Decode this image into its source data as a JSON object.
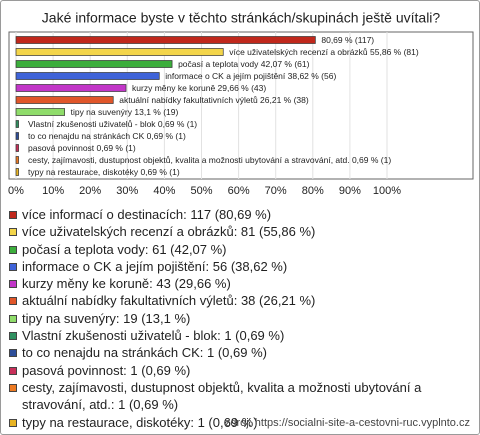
{
  "chart_data": {
    "type": "hbar",
    "title": "Jaké informace byste v těchto stránkách/skupinách ještě uvítali?",
    "categories": [
      "více informací o destinacích",
      "více uživatelských recenzí a obrázků",
      "počasí a teplota vody",
      "informace o CK a jejím pojištění",
      "kurzy měny ke koruně",
      "aktuální nabídky fakultativních výletů",
      "tipy na suvenýry",
      "Vlastní zkušenosti uživatelů - blok",
      "to co nenajdu na stránkách CK",
      "pasová povinnost",
      "cesty, zajímavosti, dustupnost objektů, kvalita a možnosti ubytování  a stravování,  atd.",
      "typy na restaurace, diskotéky"
    ],
    "values": [
      80.69,
      55.86,
      42.07,
      38.62,
      29.66,
      26.21,
      13.1,
      0.69,
      0.69,
      0.69,
      0.69,
      0.69
    ],
    "value_labels": [
      "80,69 % (117)",
      "více uživatelských recenzí a obrázků 55,86 % (81)",
      "počasí a teplota vody 42,07 % (61)",
      "informace o CK a jejím pojištění 38,62 % (56)",
      "kurzy měny ke koruně 29,66 % (43)",
      "aktuální nabídky fakultativních výletů 26,21 % (38)",
      "tipy na suvenýry 13,1 % (19)",
      "Vlastní zkušenosti uživatelů - blok 0,69 % (1)",
      "to co nenajdu na stránkách CK 0,69 % (1)",
      "pasová povinnost 0,69 % (1)",
      "cesty, zajímavosti, dustupnost objektů, kvalita a možnosti ubytování  a stravování,  atd. 0,69 % (1)",
      "typy na restaurace, diskotéky 0,69 % (1)"
    ],
    "legend_labels": [
      "více informací o destinacích: 117 (80,69 %)",
      "více uživatelských recenzí a obrázků: 81 (55,86 %)",
      "počasí a teplota vody: 61 (42,07 %)",
      "informace o CK a jejím pojištění: 56 (38,62 %)",
      "kurzy měny ke koruně: 43 (29,66 %)",
      "aktuální nabídky fakultativních výletů: 38 (26,21 %)",
      "tipy na suvenýry: 19 (13,1 %)",
      "Vlastní zkušenosti uživatelů - blok: 1 (0,69 %)",
      "to co nenajdu na stránkách CK: 1 (0,69 %)",
      "pasová povinnost: 1 (0,69 %)",
      "cesty, zajímavosti, dustupnost objektů, kvalita a možnosti ubytování  a stravování,  atd.: 1 (0,69 %)",
      "typy na restaurace, diskotéky: 1 (0,69 %)"
    ],
    "colors": [
      "#c0281c",
      "#f3d54a",
      "#3cae3c",
      "#3f63d8",
      "#c236c8",
      "#e0562a",
      "#8fdc6a",
      "#2f9060",
      "#2e4f9a",
      "#c8305a",
      "#ec7a22",
      "#e8b424"
    ],
    "xlim": [
      0,
      100
    ],
    "xticks": [
      {
        "value": 0,
        "label": "0%"
      },
      {
        "value": 10,
        "label": "10%"
      },
      {
        "value": 20,
        "label": "20%"
      },
      {
        "value": 30,
        "label": "30%"
      },
      {
        "value": 40,
        "label": "40%"
      },
      {
        "value": 50,
        "label": "50%"
      },
      {
        "value": 60,
        "label": "60%"
      },
      {
        "value": 70,
        "label": "70%"
      },
      {
        "value": 80,
        "label": "80%"
      },
      {
        "value": 90,
        "label": "90%"
      },
      {
        "value": 100,
        "label": "100%"
      }
    ],
    "source": "zdroj: https://socialni-site-a-cestovni-ruc.vyplnto.cz"
  }
}
